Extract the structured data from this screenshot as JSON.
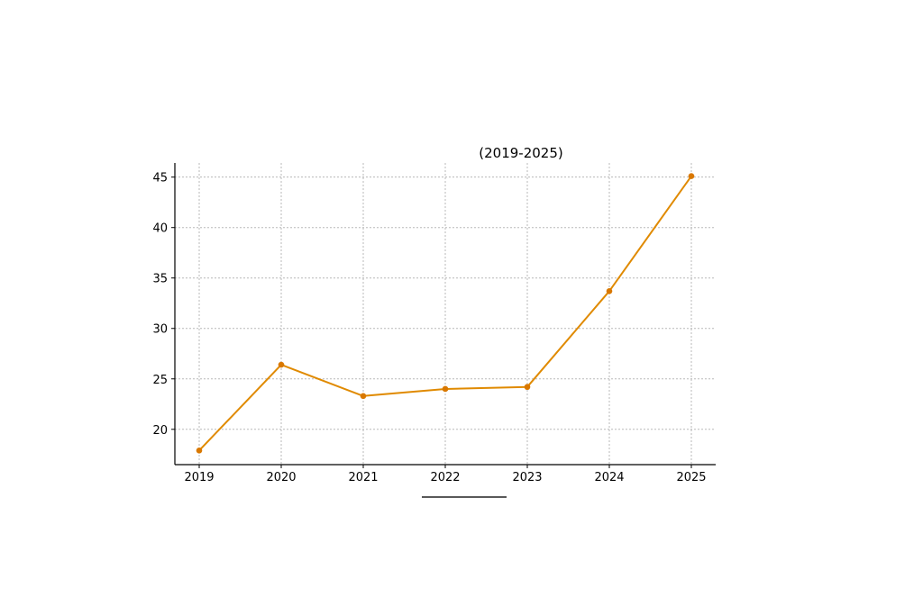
{
  "chart_data": {
    "type": "line",
    "title": "(2019-2025)",
    "xlabel": "",
    "ylabel": "",
    "x": [
      "2019",
      "2020",
      "2021",
      "2022",
      "2023",
      "2024",
      "2025"
    ],
    "series": [
      {
        "values": [
          17.9,
          26.4,
          23.3,
          24.0,
          24.2,
          33.7,
          45.1
        ]
      }
    ],
    "ylim": [
      16.5,
      46.4
    ],
    "yticks": [
      20,
      25,
      30,
      35,
      40,
      45
    ],
    "grid": true,
    "colors": {
      "line": "#e08a00",
      "marker": "#d97800"
    }
  }
}
